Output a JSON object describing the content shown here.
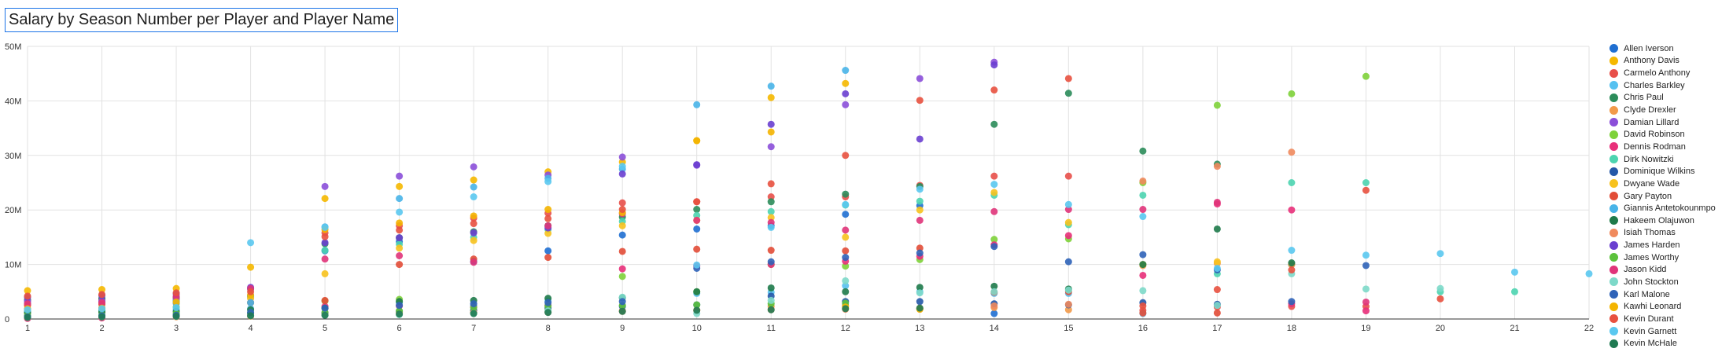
{
  "chart_data": {
    "type": "scatter",
    "title": "Salary by Season Number per Player and Player Name",
    "xlim": [
      1,
      22
    ],
    "ylim": [
      0,
      50000000
    ],
    "x_ticks": [
      "1",
      "2",
      "3",
      "4",
      "5",
      "6",
      "7",
      "8",
      "9",
      "10",
      "11",
      "12",
      "13",
      "14",
      "15",
      "16",
      "17",
      "18",
      "19",
      "20",
      "21",
      "22"
    ],
    "y_ticks": [
      {
        "value": 0,
        "label": "0"
      },
      {
        "value": 10000000,
        "label": "10M"
      },
      {
        "value": 20000000,
        "label": "20M"
      },
      {
        "value": 30000000,
        "label": "30M"
      },
      {
        "value": 40000000,
        "label": "40M"
      },
      {
        "value": 50000000,
        "label": "50M"
      }
    ],
    "grid": true,
    "legend_position": "right",
    "series": [
      {
        "name": "Allen Iverson",
        "color": "#1f6fd1",
        "x": [
          1,
          2,
          3,
          4,
          5,
          6,
          7,
          8,
          9,
          10,
          11,
          12,
          13,
          14
        ],
        "y": [
          2800000,
          3100000,
          3300000,
          5500000,
          12500000,
          14200000,
          10600000,
          12500000,
          15400000,
          16500000,
          17100000,
          19200000,
          20800000,
          1000000
        ]
      },
      {
        "name": "Anthony Davis",
        "color": "#f5b800",
        "x": [
          1,
          2,
          3,
          4,
          5,
          6,
          7,
          8,
          9,
          10,
          11,
          12
        ],
        "y": [
          5200000,
          5400000,
          5600000,
          9500000,
          22100000,
          24300000,
          25500000,
          27000000,
          28800000,
          32700000,
          40600000,
          43200000
        ]
      },
      {
        "name": "Carmelo Anthony",
        "color": "#e8504a",
        "x": [
          1,
          2,
          3,
          4,
          5,
          6,
          7,
          8,
          9,
          10,
          11,
          12,
          13,
          14,
          15,
          16,
          17,
          18,
          19
        ],
        "y": [
          3400000,
          3600000,
          3800000,
          4000000,
          15800000,
          17100000,
          18500000,
          19400000,
          21300000,
          21500000,
          22400000,
          22400000,
          24500000,
          26200000,
          26200000,
          1600000,
          2200000,
          2300000,
          2300000
        ]
      },
      {
        "name": "Charles Barkley",
        "color": "#56c1f0",
        "x": [
          1,
          2,
          3,
          4,
          5,
          6,
          7,
          8,
          9,
          10,
          11,
          12,
          13,
          14,
          15,
          16
        ],
        "y": [
          450000,
          1500000,
          1700000,
          1900000,
          2000000,
          3000000,
          2500000,
          3300000,
          3900000,
          4700000,
          4900000,
          6100000,
          5000000,
          4700000,
          4700000,
          1000000
        ]
      },
      {
        "name": "Chris Paul",
        "color": "#2b8c5a",
        "x": [
          1,
          2,
          3,
          4,
          5,
          6,
          7,
          8,
          9,
          10,
          11,
          12,
          13,
          14,
          15,
          16,
          17,
          18
        ],
        "y": [
          3500000,
          3800000,
          4000000,
          4300000,
          13800000,
          14900000,
          16000000,
          17100000,
          18700000,
          20100000,
          21500000,
          22900000,
          24300000,
          35700000,
          41400000,
          30800000,
          28400000,
          10000000
        ]
      },
      {
        "name": "Clyde Drexler",
        "color": "#f29a4a",
        "x": [
          1,
          2,
          3,
          4,
          5,
          6,
          7,
          8,
          9,
          10,
          11,
          12,
          13,
          14,
          15,
          16,
          17,
          18
        ],
        "y": [
          200000,
          300000,
          400000,
          500000,
          1100000,
          1200000,
          1200000,
          1300000,
          1500000,
          1600000,
          2300000,
          2500000,
          1800000,
          2100000,
          1700000,
          9800000,
          10200000,
          10000000
        ]
      },
      {
        "name": "Damian Lillard",
        "color": "#8b4fd9",
        "x": [
          1,
          2,
          3,
          4,
          5,
          6,
          7,
          8,
          9,
          10,
          11,
          12,
          13,
          14
        ],
        "y": [
          3200000,
          3300000,
          3500000,
          4200000,
          24300000,
          26200000,
          27900000,
          26400000,
          29700000,
          28200000,
          31600000,
          39300000,
          44100000,
          47100000
        ]
      },
      {
        "name": "David Robinson",
        "color": "#7ed23a",
        "x": [
          1,
          2,
          3,
          4,
          5,
          6,
          7,
          8,
          9,
          10,
          11,
          12,
          13,
          14,
          15,
          16,
          17,
          18,
          19
        ],
        "y": [
          1000000,
          1200000,
          2200000,
          3000000,
          3300000,
          3600000,
          1600000,
          1800000,
          7800000,
          5000000,
          10000000,
          9700000,
          10900000,
          14600000,
          14700000,
          25000000,
          39200000,
          41300000,
          44500000
        ]
      },
      {
        "name": "Dennis Rodman",
        "color": "#e8307a",
        "x": [
          1,
          2,
          3,
          4,
          5,
          6,
          7,
          8,
          9,
          10,
          11,
          12,
          13,
          14,
          15,
          16,
          17,
          18,
          19
        ],
        "y": [
          100000,
          200000,
          500000,
          600000,
          2300000,
          2400000,
          2200000,
          2500000,
          9200000,
          9700000,
          10000000,
          10600000,
          11500000,
          13600000,
          15300000,
          8000000,
          21100000,
          20000000,
          1500000
        ]
      },
      {
        "name": "Dirk Nowitzki",
        "color": "#4dd4b0",
        "x": [
          1,
          2,
          3,
          4,
          5,
          6,
          7,
          8,
          9,
          10,
          11,
          12,
          13,
          14,
          15,
          16,
          17,
          18,
          19,
          20,
          21
        ],
        "y": [
          1500000,
          1700000,
          3200000,
          4100000,
          12600000,
          13700000,
          15000000,
          16400000,
          17900000,
          19000000,
          19700000,
          20900000,
          21600000,
          22700000,
          17300000,
          22700000,
          8300000,
          25000000,
          25000000,
          5000000,
          5000000
        ]
      },
      {
        "name": "Dominique Wilkins",
        "color": "#2558a8",
        "x": [
          1,
          2,
          3,
          4,
          5,
          6,
          7,
          8,
          9,
          10,
          11,
          12,
          13,
          14,
          15,
          16,
          17
        ],
        "y": [
          500000,
          600000,
          800000,
          1000000,
          1100000,
          1400000,
          1600000,
          2100000,
          2300000,
          2600000,
          4200000,
          3200000,
          3200000,
          2800000,
          2600000,
          3000000,
          2700000
        ]
      },
      {
        "name": "Dwyane Wade",
        "color": "#f7c21e",
        "x": [
          1,
          2,
          3,
          4,
          5,
          6,
          7,
          8,
          9,
          10,
          11,
          12,
          13,
          14,
          15,
          16,
          17
        ],
        "y": [
          2600000,
          2800000,
          3000000,
          3800000,
          8300000,
          13000000,
          14400000,
          15700000,
          17100000,
          18100000,
          18600000,
          15000000,
          20000000,
          23200000,
          17700000,
          10000000,
          10500000
        ]
      },
      {
        "name": "Gary Payton",
        "color": "#e24d37",
        "x": [
          1,
          2,
          3,
          4,
          5,
          6,
          7,
          8,
          9,
          10,
          11,
          12,
          13,
          14,
          15,
          16,
          17
        ],
        "y": [
          2500000,
          2700000,
          2900000,
          3000000,
          3400000,
          10000000,
          11000000,
          11300000,
          12400000,
          12800000,
          12600000,
          12500000,
          13000000,
          4900000,
          5000000,
          1100000,
          1100000
        ]
      },
      {
        "name": "Giannis Antetokounmpo",
        "color": "#48b4e8",
        "x": [
          1,
          2,
          3,
          4,
          5,
          6,
          7,
          8,
          9,
          10,
          11,
          12
        ],
        "y": [
          1800000,
          2000000,
          2900000,
          3000000,
          16900000,
          22100000,
          24200000,
          25800000,
          27500000,
          39300000,
          42700000,
          45600000
        ]
      },
      {
        "name": "Hakeem Olajuwon",
        "color": "#1e7a4a",
        "x": [
          1,
          2,
          3,
          4,
          5,
          6,
          7,
          8,
          9,
          10,
          11,
          12,
          13,
          14,
          15,
          16,
          17,
          18
        ],
        "y": [
          1200000,
          1300000,
          1400000,
          1700000,
          2000000,
          3200000,
          3400000,
          3800000,
          3900000,
          5000000,
          5700000,
          5000000,
          5800000,
          6000000,
          5500000,
          10000000,
          16500000,
          10300000
        ]
      },
      {
        "name": "Isiah Thomas",
        "color": "#f08a5d",
        "x": [
          1,
          2,
          3,
          4,
          5,
          6,
          7,
          8,
          9,
          10,
          11,
          12,
          13,
          14,
          15,
          16,
          17,
          18
        ],
        "y": [
          300000,
          400000,
          500000,
          700000,
          800000,
          1000000,
          1200000,
          1300000,
          1400000,
          1600000,
          1700000,
          1800000,
          2000000,
          2400000,
          2700000,
          25300000,
          28000000,
          30600000
        ]
      },
      {
        "name": "James Harden",
        "color": "#6a3fd0",
        "x": [
          1,
          2,
          3,
          4,
          5,
          6,
          7,
          8,
          9,
          10,
          11,
          12,
          13,
          14
        ],
        "y": [
          4000000,
          4300000,
          4600000,
          5800000,
          14000000,
          14900000,
          15800000,
          16700000,
          26600000,
          28300000,
          35700000,
          41300000,
          33000000,
          46600000
        ]
      },
      {
        "name": "James Worthy",
        "color": "#5cc23c",
        "x": [
          1,
          2,
          3,
          4,
          5,
          6,
          7,
          8,
          9,
          10,
          11,
          12
        ],
        "y": [
          600000,
          700000,
          1000000,
          1100000,
          1200000,
          1500000,
          2100000,
          2400000,
          2500000,
          2600000,
          2800000,
          2900000
        ]
      },
      {
        "name": "Jason Kidd",
        "color": "#e0347a",
        "x": [
          1,
          2,
          3,
          4,
          5,
          6,
          7,
          8,
          9,
          10,
          11,
          12,
          13,
          14,
          15,
          16,
          17,
          18,
          19
        ],
        "y": [
          2800000,
          3000000,
          4100000,
          5600000,
          11000000,
          11600000,
          10400000,
          17100000,
          19300000,
          18100000,
          17700000,
          16300000,
          18100000,
          19700000,
          20100000,
          20100000,
          21400000,
          2800000,
          3100000
        ]
      },
      {
        "name": "John Stockton",
        "color": "#7dd9c9",
        "x": [
          1,
          2,
          3,
          4,
          5,
          6,
          7,
          8,
          9,
          10,
          11,
          12,
          13,
          14,
          15,
          16,
          17,
          18,
          19,
          20
        ],
        "y": [
          300000,
          400000,
          500000,
          600000,
          700000,
          800000,
          1000000,
          1500000,
          4000000,
          1000000,
          3400000,
          7000000,
          4800000,
          5000000,
          5300000,
          5200000,
          2500000,
          8300000,
          5500000,
          5600000
        ]
      },
      {
        "name": "Karl Malone",
        "color": "#2f63b8",
        "x": [
          1,
          2,
          3,
          4,
          5,
          6,
          7,
          8,
          9,
          10,
          11,
          12,
          13,
          14,
          15,
          16,
          17,
          18,
          19
        ],
        "y": [
          400000,
          600000,
          700000,
          1200000,
          2000000,
          2500000,
          2800000,
          3000000,
          3200000,
          9300000,
          10500000,
          11300000,
          12100000,
          13300000,
          10500000,
          11800000,
          9000000,
          3200000,
          9800000
        ]
      },
      {
        "name": "Kawhi Leonard",
        "color": "#f4b400",
        "x": [
          1,
          2,
          3,
          4,
          5,
          6,
          7,
          8,
          9,
          10,
          11,
          12,
          13
        ],
        "y": [
          1900000,
          2000000,
          3100000,
          4400000,
          16400000,
          17600000,
          18900000,
          20100000,
          19500000,
          32700000,
          34300000,
          2200000,
          1800000
        ]
      },
      {
        "name": "Kevin Durant",
        "color": "#e8513f",
        "x": [
          1,
          2,
          3,
          4,
          5,
          6,
          7,
          8,
          9,
          10,
          11,
          12,
          13,
          14,
          15,
          16,
          17,
          18,
          19,
          20
        ],
        "y": [
          4200000,
          4500000,
          4800000,
          5000000,
          15100000,
          16300000,
          17500000,
          18400000,
          20100000,
          21500000,
          24800000,
          30000000,
          40100000,
          42000000,
          44100000,
          2400000,
          5400000,
          9000000,
          23600000,
          3700000
        ]
      },
      {
        "name": "Kevin Garnett",
        "color": "#5ac8f0",
        "x": [
          1,
          2,
          3,
          4,
          5,
          6,
          7,
          8,
          9,
          10,
          11,
          12,
          13,
          14,
          15,
          16,
          17,
          18,
          19,
          20,
          21,
          22
        ],
        "y": [
          1700000,
          1900000,
          2100000,
          14000000,
          16800000,
          19600000,
          22400000,
          25200000,
          28000000,
          9900000,
          16800000,
          21000000,
          23800000,
          24700000,
          21000000,
          18800000,
          9300000,
          12600000,
          11700000,
          12000000,
          8600000,
          8300000
        ]
      },
      {
        "name": "Kevin McHale",
        "color": "#1f7a52",
        "x": [
          1,
          2,
          3,
          4,
          5,
          6,
          7,
          8,
          9,
          10,
          11,
          12,
          13
        ],
        "y": [
          300000,
          400000,
          500000,
          600000,
          700000,
          900000,
          1000000,
          1200000,
          1400000,
          1600000,
          1700000,
          1900000,
          2000000
        ]
      }
    ]
  }
}
